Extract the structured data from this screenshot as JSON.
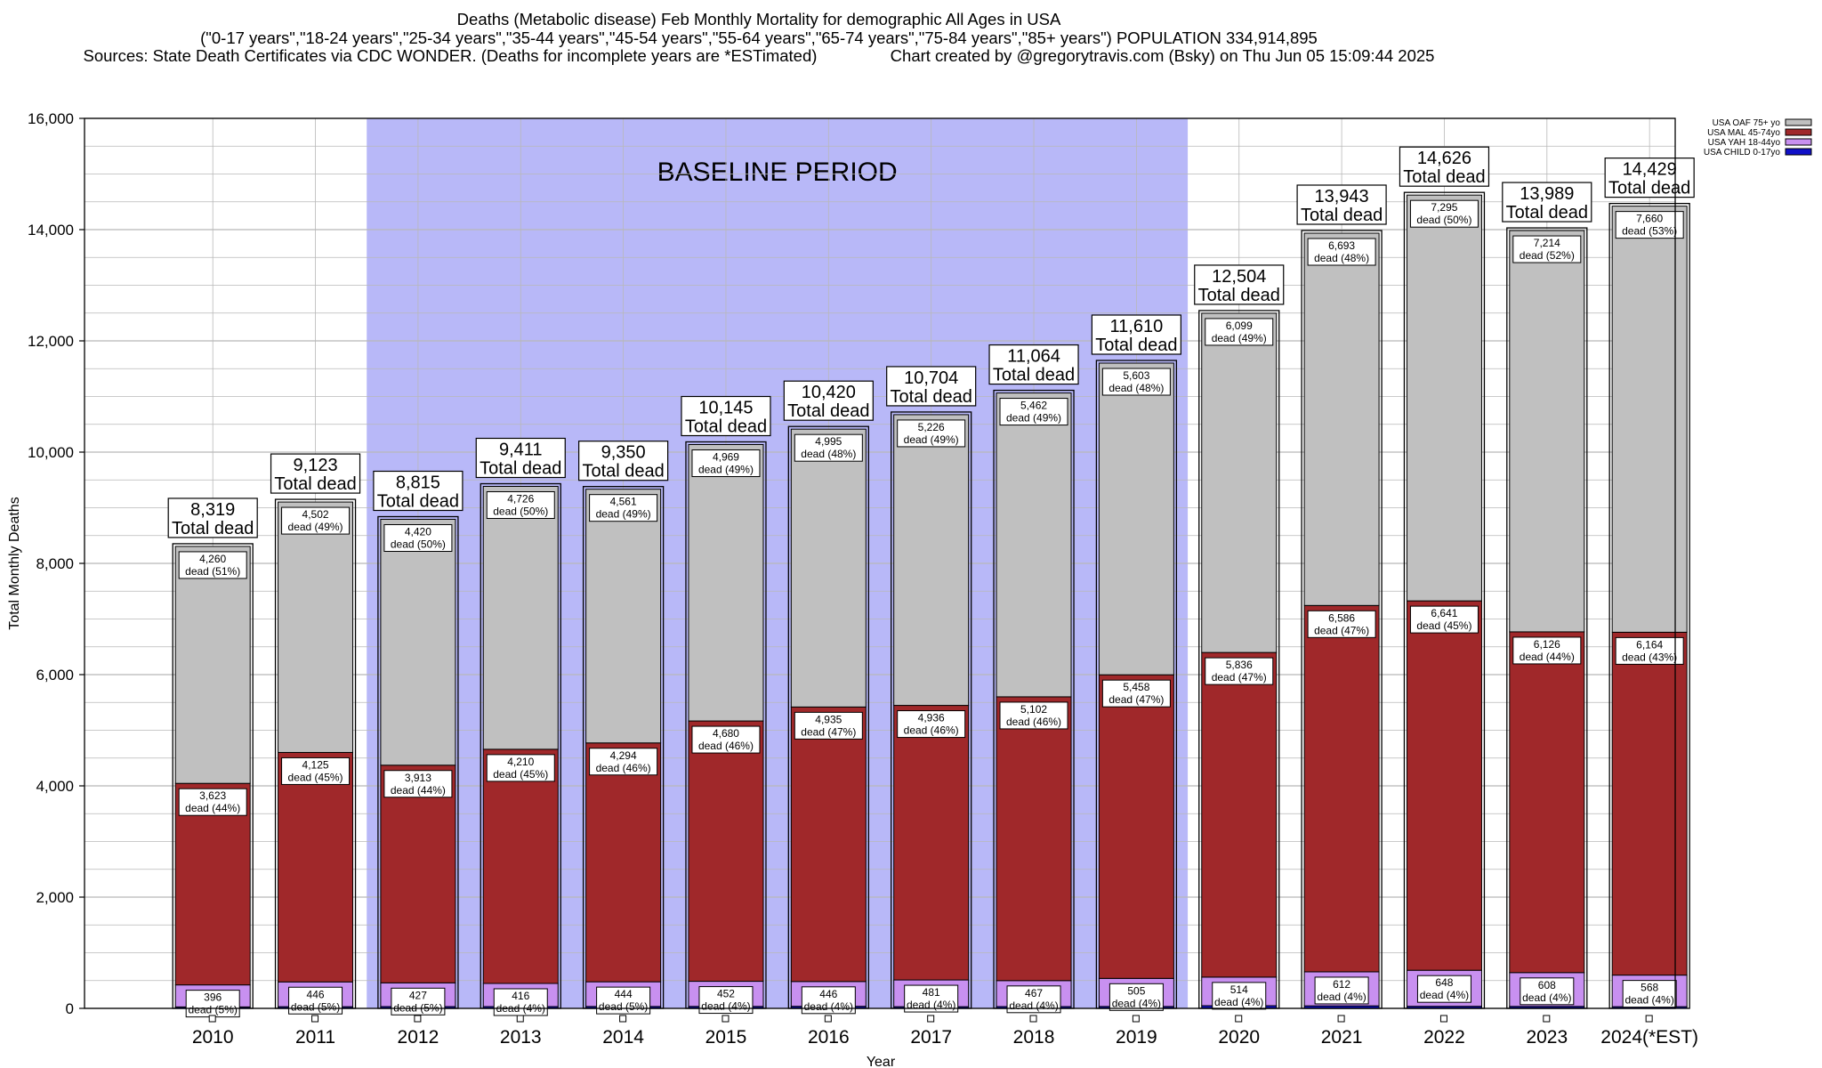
{
  "header": {
    "title": "Deaths (Metabolic disease) Feb Monthly Mortality for demographic All Ages in USA",
    "subtitle": "(\"0-17 years\",\"18-24 years\",\"25-34 years\",\"35-44 years\",\"45-54 years\",\"55-64 years\",\"65-74 years\",\"75-84 years\",\"85+ years\") POPULATION 334,914,895",
    "sources": "Sources: State Death Certificates via CDC WONDER. (Deaths for incomplete years are *ESTimated)",
    "credit": "Chart created by @gregorytravis.com (Bsky) on Thu Jun 05 15:09:44 2025"
  },
  "chart_data": {
    "type": "bar",
    "stacked": true,
    "xlabel": "Year",
    "ylabel": "Total Monthly Deaths",
    "ylim": [
      0,
      16000
    ],
    "yticks": [
      0,
      2000,
      4000,
      6000,
      8000,
      10000,
      12000,
      14000,
      16000
    ],
    "ytick_labels": [
      "0",
      "2,000",
      "4,000",
      "6,000",
      "8,000",
      "10,000",
      "12,000",
      "14,000",
      "16,000"
    ],
    "grid": true,
    "legend_position": "top-right",
    "categories": [
      "2010",
      "2011",
      "2012",
      "2013",
      "2014",
      "2015",
      "2016",
      "2017",
      "2018",
      "2019",
      "2020",
      "2021",
      "2022",
      "2023",
      "2024(*EST)"
    ],
    "baseline_period": {
      "label": "BASELINE PERIOD",
      "from": "2012",
      "to": "2019",
      "color": "#b8b8f8"
    },
    "series": [
      {
        "name": "USA CHILD 0-17yo",
        "color": "#1010c8",
        "values": [
          26,
          30,
          32,
          32,
          34,
          35,
          37,
          30,
          32,
          34,
          48,
          45,
          37,
          35,
          30
        ]
      },
      {
        "name": "USA YAH 18-44yo",
        "color": "#c890f0",
        "values": [
          396,
          446,
          427,
          416,
          444,
          452,
          446,
          481,
          467,
          505,
          514,
          612,
          648,
          608,
          568
        ],
        "labels": [
          "396\ndead (5%)",
          "446\ndead (5%)",
          "427\ndead (5%)",
          "416\ndead (4%)",
          "444\ndead (5%)",
          "452\ndead (4%)",
          "446\ndead (4%)",
          "481\ndead (4%)",
          "467\ndead (4%)",
          "505\ndead (4%)",
          "514\ndead (4%)",
          "612\ndead (4%)",
          "648\ndead (4%)",
          "608\ndead (4%)",
          "568\ndead (4%)"
        ]
      },
      {
        "name": "USA MAL 45-74yo",
        "color": "#a0282a",
        "values": [
          3623,
          4125,
          3913,
          4210,
          4294,
          4680,
          4935,
          4936,
          5102,
          5458,
          5836,
          6586,
          6641,
          6126,
          6164
        ],
        "labels": [
          "3,623\ndead (44%)",
          "4,125\ndead (45%)",
          "3,913\ndead (44%)",
          "4,210\ndead (45%)",
          "4,294\ndead (46%)",
          "4,680\ndead (46%)",
          "4,935\ndead (47%)",
          "4,936\ndead (46%)",
          "5,102\ndead (46%)",
          "5,458\ndead (47%)",
          "5,836\ndead (47%)",
          "6,586\ndead (47%)",
          "6,641\ndead (45%)",
          "6,126\ndead (44%)",
          "6,164\ndead (43%)"
        ]
      },
      {
        "name": "USA OAF 75+ yo",
        "color": "#c0c0c0",
        "values": [
          4260,
          4502,
          4420,
          4726,
          4561,
          4969,
          4995,
          5226,
          5462,
          5603,
          6099,
          6693,
          7295,
          7214,
          7660
        ],
        "labels": [
          "4,260\ndead (51%)",
          "4,502\ndead (49%)",
          "4,420\ndead (50%)",
          "4,726\ndead (50%)",
          "4,561\ndead (49%)",
          "4,969\ndead (49%)",
          "4,995\ndead (48%)",
          "5,226\ndead (49%)",
          "5,462\ndead (49%)",
          "5,603\ndead (48%)",
          "6,099\ndead (49%)",
          "6,693\ndead (48%)",
          "7,295\ndead (50%)",
          "7,214\ndead (52%)",
          "7,660\ndead (53%)"
        ]
      }
    ],
    "totals": [
      8319,
      9123,
      8815,
      9411,
      9350,
      10145,
      10420,
      10704,
      11064,
      11610,
      12504,
      13943,
      14626,
      13989,
      14429
    ],
    "total_labels": [
      "8,319\nTotal dead",
      "9,123\nTotal dead",
      "8,815\nTotal dead",
      "9,411\nTotal dead",
      "9,350\nTotal dead",
      "10,145\nTotal dead",
      "10,420\nTotal dead",
      "10,704\nTotal dead",
      "11,064\nTotal dead",
      "11,610\nTotal dead",
      "12,504\nTotal dead",
      "13,943\nTotal dead",
      "14,626\nTotal dead",
      "13,989\nTotal dead",
      "14,429\nTotal dead"
    ]
  }
}
